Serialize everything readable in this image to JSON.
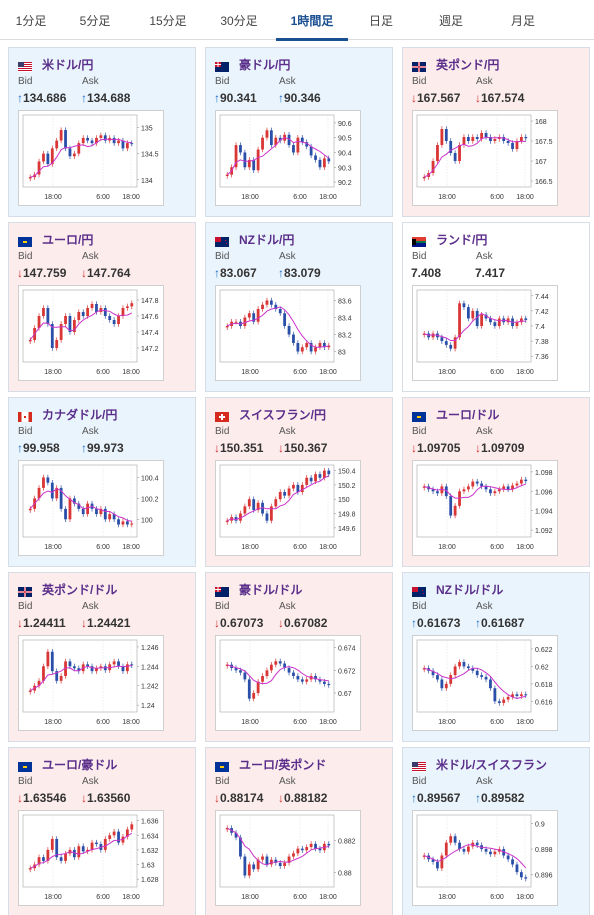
{
  "tabs": [
    {
      "label": "1分足",
      "active": false
    },
    {
      "label": "5分足",
      "active": false
    },
    {
      "label": "15分足",
      "active": false
    },
    {
      "label": "30分足",
      "active": false
    },
    {
      "label": "1時間足",
      "active": true
    },
    {
      "label": "日足",
      "active": false
    },
    {
      "label": "週足",
      "active": false
    },
    {
      "label": "月足",
      "active": false
    }
  ],
  "labels": {
    "bid": "Bid",
    "ask": "Ask"
  },
  "colors": {
    "up_arrow": "#1a6fc2",
    "down_arrow": "#d23232",
    "up_card": "#eaf4fc",
    "down_card": "#fcecec",
    "ma_line": "#cc33cc",
    "candle_up": "#d93636",
    "candle_down": "#2a4fa8"
  },
  "cards": [
    {
      "pair": "米ドル/円",
      "flag": "us-flag-icon",
      "direction": "up",
      "bid": "134.686",
      "ask": "134.688",
      "chart": {
        "yticks": [
          "135",
          "134.5",
          "134"
        ],
        "ylim": [
          133.9,
          135.2
        ],
        "xticks": [
          "18:00",
          "6:00",
          "18:00"
        ],
        "closes": [
          134.05,
          134.1,
          134.35,
          134.5,
          134.3,
          134.6,
          134.75,
          134.95,
          134.6,
          134.45,
          134.5,
          134.7,
          134.8,
          134.75,
          134.7,
          134.8,
          134.85,
          134.75,
          134.8,
          134.7,
          134.75,
          134.6,
          134.7,
          134.69
        ]
      }
    },
    {
      "pair": "豪ドル/円",
      "flag": "australia-flag-icon",
      "direction": "up",
      "bid": "90.341",
      "ask": "90.346",
      "chart": {
        "yticks": [
          "90.6",
          "90.5",
          "90.4",
          "90.3",
          "90.2"
        ],
        "ylim": [
          90.18,
          90.64
        ],
        "xticks": [
          "18:00",
          "6:00",
          "18:00"
        ],
        "closes": [
          90.25,
          90.3,
          90.45,
          90.4,
          90.3,
          90.35,
          90.28,
          90.42,
          90.5,
          90.55,
          90.45,
          90.5,
          90.48,
          90.52,
          90.45,
          90.4,
          90.5,
          90.47,
          90.44,
          90.38,
          90.35,
          90.3,
          90.36,
          90.34
        ]
      }
    },
    {
      "pair": "英ポンド/円",
      "flag": "uk-flag-icon",
      "direction": "down",
      "bid": "167.567",
      "ask": "167.574",
      "chart": {
        "yticks": [
          "168",
          "167.5",
          "167",
          "166.5"
        ],
        "ylim": [
          166.4,
          168.1
        ],
        "xticks": [
          "18:00",
          "6:00",
          "18:00"
        ],
        "closes": [
          166.6,
          166.7,
          167.0,
          167.4,
          167.8,
          167.5,
          167.2,
          167.0,
          167.4,
          167.6,
          167.5,
          167.6,
          167.55,
          167.7,
          167.6,
          167.5,
          167.55,
          167.6,
          167.5,
          167.45,
          167.3,
          167.5,
          167.6,
          167.57
        ]
      }
    },
    {
      "pair": "ユーロ/円",
      "flag": "eu-flag-icon",
      "direction": "down",
      "bid": "147.759",
      "ask": "147.764",
      "chart": {
        "yticks": [
          "147.8",
          "147.6",
          "147.4",
          "147.2"
        ],
        "ylim": [
          147.05,
          147.9
        ],
        "xticks": [
          "18:00",
          "6:00",
          "18:00"
        ],
        "closes": [
          147.3,
          147.45,
          147.6,
          147.7,
          147.5,
          147.2,
          147.3,
          147.5,
          147.6,
          147.4,
          147.55,
          147.65,
          147.6,
          147.7,
          147.75,
          147.65,
          147.7,
          147.6,
          147.55,
          147.5,
          147.6,
          147.7,
          147.72,
          147.76
        ]
      }
    },
    {
      "pair": "NZドル/円",
      "flag": "nz-flag-icon",
      "direction": "up",
      "bid": "83.067",
      "ask": "83.079",
      "chart": {
        "yticks": [
          "83.6",
          "83.4",
          "83.2",
          "83"
        ],
        "ylim": [
          82.9,
          83.7
        ],
        "xticks": [
          "18:00",
          "6:00",
          "18:00"
        ],
        "closes": [
          83.3,
          83.35,
          83.35,
          83.3,
          83.4,
          83.45,
          83.35,
          83.5,
          83.55,
          83.6,
          83.55,
          83.5,
          83.45,
          83.3,
          83.2,
          83.1,
          83.0,
          83.05,
          83.1,
          83.0,
          83.05,
          83.1,
          83.05,
          83.07
        ]
      }
    },
    {
      "pair": "ランド/円",
      "flag": "south-africa-flag-icon",
      "direction": "flat",
      "bid": "7.408",
      "ask": "7.417",
      "chart": {
        "yticks": [
          "7.44",
          "7.42",
          "7.4",
          "7.38",
          "7.36"
        ],
        "ylim": [
          7.355,
          7.445
        ],
        "xticks": [
          "18:00",
          "6:00",
          "18:00"
        ],
        "closes": [
          7.39,
          7.385,
          7.39,
          7.385,
          7.38,
          7.375,
          7.37,
          7.385,
          7.43,
          7.425,
          7.41,
          7.42,
          7.4,
          7.415,
          7.41,
          7.405,
          7.4,
          7.41,
          7.405,
          7.41,
          7.4,
          7.405,
          7.41,
          7.408
        ]
      }
    },
    {
      "pair": "カナダドル/円",
      "flag": "canada-flag-icon",
      "direction": "up",
      "bid": "99.958",
      "ask": "99.973",
      "chart": {
        "yticks": [
          "100.4",
          "100.2",
          "100"
        ],
        "ylim": [
          99.85,
          100.5
        ],
        "xticks": [
          "18:00",
          "6:00",
          "18:00"
        ],
        "closes": [
          100.1,
          100.2,
          100.3,
          100.4,
          100.35,
          100.2,
          100.3,
          100.1,
          100.0,
          100.2,
          100.15,
          100.1,
          100.05,
          100.15,
          100.1,
          100.05,
          100.1,
          100.0,
          100.05,
          100.0,
          99.95,
          99.98,
          99.95,
          99.96
        ]
      }
    },
    {
      "pair": "スイスフラン/円",
      "flag": "swiss-flag-icon",
      "direction": "down",
      "bid": "150.351",
      "ask": "150.367",
      "chart": {
        "yticks": [
          "150.4",
          "150.2",
          "150",
          "149.8",
          "149.6"
        ],
        "ylim": [
          149.5,
          150.45
        ],
        "xticks": [
          "18:00",
          "6:00",
          "18:00"
        ],
        "closes": [
          149.7,
          149.75,
          149.7,
          149.8,
          149.9,
          150.0,
          149.85,
          149.95,
          149.8,
          149.7,
          149.9,
          150.0,
          150.1,
          150.05,
          150.15,
          150.2,
          150.1,
          150.2,
          150.3,
          150.25,
          150.35,
          150.3,
          150.4,
          150.35
        ]
      }
    },
    {
      "pair": "ユーロ/ドル",
      "flag": "eu-us-flag-icon",
      "direction": "down",
      "bid": "1.09705",
      "ask": "1.09709",
      "chart": {
        "yticks": [
          "1.098",
          "1.096",
          "1.094",
          "1.092"
        ],
        "ylim": [
          1.0915,
          1.0985
        ],
        "xticks": [
          "18:00",
          "6:00",
          "18:00"
        ],
        "closes": [
          1.0965,
          1.0962,
          1.096,
          1.0958,
          1.0965,
          1.0955,
          1.0935,
          1.0945,
          1.096,
          1.0962,
          1.0965,
          1.097,
          1.0968,
          1.0965,
          1.0962,
          1.0958,
          1.096,
          1.0962,
          1.0965,
          1.0962,
          1.0966,
          1.0968,
          1.0972,
          1.09705
        ]
      }
    },
    {
      "pair": "英ポンド/ドル",
      "flag": "uk-us-flag-icon",
      "direction": "down",
      "bid": "1.24411",
      "ask": "1.24421",
      "chart": {
        "yticks": [
          "1.246",
          "1.244",
          "1.242",
          "1.24"
        ],
        "ylim": [
          1.2395,
          1.2465
        ],
        "xticks": [
          "18:00",
          "6:00",
          "18:00"
        ],
        "closes": [
          1.2415,
          1.242,
          1.2425,
          1.244,
          1.2455,
          1.2435,
          1.2425,
          1.243,
          1.2445,
          1.244,
          1.2438,
          1.2435,
          1.2442,
          1.244,
          1.2435,
          1.2438,
          1.244,
          1.2436,
          1.2442,
          1.2445,
          1.244,
          1.2435,
          1.2442,
          1.2441
        ]
      }
    },
    {
      "pair": "豪ドル/ドル",
      "flag": "au-us-flag-icon",
      "direction": "down",
      "bid": "0.67073",
      "ask": "0.67082",
      "chart": {
        "yticks": [
          "0.674",
          "0.672",
          "0.67"
        ],
        "ylim": [
          0.6685,
          0.6745
        ],
        "xticks": [
          "18:00",
          "6:00",
          "18:00"
        ],
        "closes": [
          0.6725,
          0.6722,
          0.672,
          0.6718,
          0.6712,
          0.6695,
          0.67,
          0.671,
          0.6715,
          0.672,
          0.6725,
          0.6728,
          0.6726,
          0.6722,
          0.6718,
          0.6715,
          0.6712,
          0.671,
          0.6712,
          0.6715,
          0.6712,
          0.671,
          0.6708,
          0.6707
        ]
      }
    },
    {
      "pair": "NZドル/ドル",
      "flag": "nz-us-flag-icon",
      "direction": "up",
      "bid": "0.61673",
      "ask": "0.61687",
      "chart": {
        "yticks": [
          "0.622",
          "0.62",
          "0.618",
          "0.616"
        ],
        "ylim": [
          0.615,
          0.6228
        ],
        "xticks": [
          "18:00",
          "6:00",
          "18:00"
        ],
        "closes": [
          0.6198,
          0.6195,
          0.619,
          0.6185,
          0.6175,
          0.618,
          0.619,
          0.62,
          0.6205,
          0.62,
          0.6198,
          0.6195,
          0.619,
          0.6188,
          0.6185,
          0.6175,
          0.616,
          0.6158,
          0.6162,
          0.6165,
          0.6168,
          0.6166,
          0.6168,
          0.6167
        ]
      }
    },
    {
      "pair": "ユーロ/豪ドル",
      "flag": "eu-au-flag-icon",
      "direction": "down",
      "bid": "1.63546",
      "ask": "1.63560",
      "chart": {
        "yticks": [
          "1.636",
          "1.634",
          "1.632",
          "1.63",
          "1.628"
        ],
        "ylim": [
          1.6272,
          1.6365
        ],
        "xticks": [
          "18:00",
          "6:00",
          "18:00"
        ],
        "closes": [
          1.6295,
          1.63,
          1.631,
          1.6305,
          1.632,
          1.6335,
          1.631,
          1.6305,
          1.6315,
          1.632,
          1.631,
          1.6325,
          1.6318,
          1.632,
          1.633,
          1.6328,
          1.632,
          1.6335,
          1.634,
          1.6345,
          1.633,
          1.6338,
          1.6348,
          1.6355
        ]
      }
    },
    {
      "pair": "ユーロ/英ポンド",
      "flag": "eu-uk-flag-icon",
      "direction": "down",
      "bid": "0.88174",
      "ask": "0.88182",
      "chart": {
        "yticks": [
          "0.882",
          "0.88"
        ],
        "ylim": [
          0.8792,
          0.8835
        ],
        "xticks": [
          "18:00",
          "6:00",
          "18:00"
        ],
        "closes": [
          0.8828,
          0.8825,
          0.8822,
          0.881,
          0.8798,
          0.8805,
          0.8802,
          0.8808,
          0.881,
          0.8805,
          0.8808,
          0.8806,
          0.8804,
          0.8806,
          0.881,
          0.8812,
          0.8815,
          0.8814,
          0.8816,
          0.8818,
          0.8815,
          0.8814,
          0.8818,
          0.8817
        ]
      }
    },
    {
      "pair": "米ドル/スイスフラン",
      "flag": "us-swiss-flag-icon",
      "direction": "up",
      "bid": "0.89567",
      "ask": "0.89582",
      "chart": {
        "yticks": [
          "0.9",
          "0.898",
          "0.896"
        ],
        "ylim": [
          0.8952,
          0.9005
        ],
        "xticks": [
          "18:00",
          "6:00",
          "18:00"
        ],
        "closes": [
          0.8975,
          0.8972,
          0.897,
          0.8965,
          0.8975,
          0.8985,
          0.899,
          0.8985,
          0.898,
          0.8978,
          0.8982,
          0.8985,
          0.8983,
          0.898,
          0.8978,
          0.8976,
          0.8978,
          0.898,
          0.8975,
          0.8972,
          0.8968,
          0.8962,
          0.8958,
          0.8957
        ]
      }
    }
  ]
}
